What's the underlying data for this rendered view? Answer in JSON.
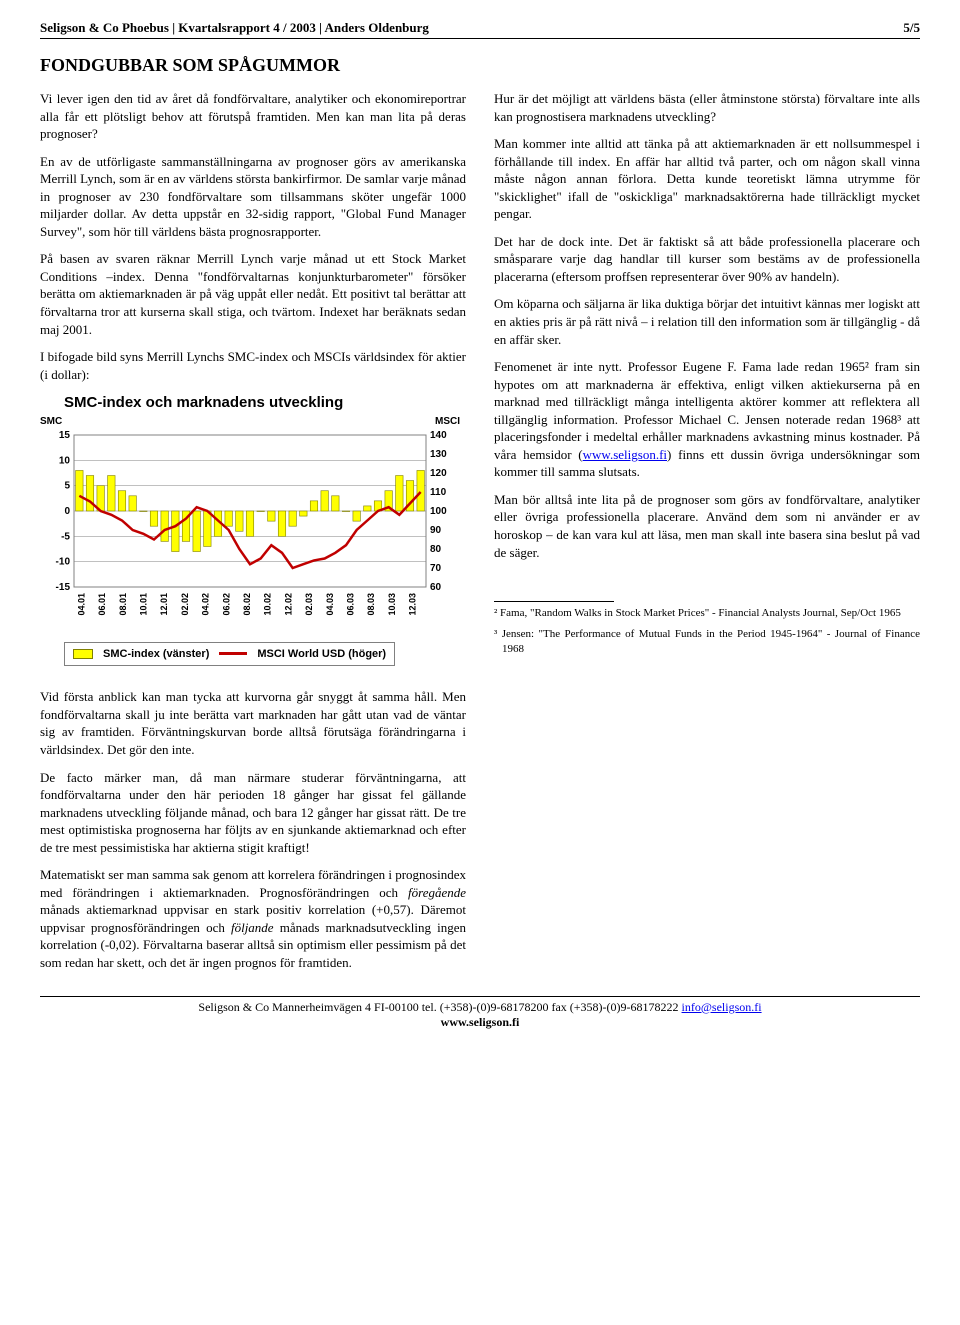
{
  "header": {
    "left": "Seligson & Co Phoebus | Kvartalsrapport 4 / 2003 | Anders Oldenburg",
    "right": "5/5"
  },
  "title": "FONDGUBBAR SOM SPÅGUMMOR",
  "left_paras": [
    "Vi lever igen den tid av året då fondförvaltare, analytiker och ekonomireportrar alla får ett plötsligt behov att förutspå framtiden. Men kan man lita på deras prognoser?",
    "En av de utförligaste sammanställningarna av prognoser görs av amerikanska Merrill Lynch, som är en av världens största bankirfirmor. De samlar varje månad in prognoser av 230 fondförvaltare som tillsammans sköter ungefär 1000 miljarder dollar. Av detta uppstår en 32-sidig rapport, \"Global Fund Manager Survey\", som hör till världens bästa prognosrapporter.",
    "På basen av svaren räknar Merrill Lynch varje månad ut ett Stock Market Conditions –index. Denna \"fondförvaltarnas konjunkturbarometer\" försöker berätta om aktiemarknaden är på väg uppåt eller nedåt. Ett positivt tal berättar att förvaltarna tror att kurserna skall stiga, och tvärtom. Indexet har beräknats sedan maj 2001.",
    "I bifogade bild syns Merrill Lynchs SMC-index och MSCIs världsindex för aktier (i dollar):"
  ],
  "right_paras": [
    "Hur är det möjligt att världens bästa (eller åtminstone största) förvaltare inte alls kan prognostisera marknadens utveckling?",
    "Man kommer inte alltid att tänka på att aktiemarknaden är ett nollsummespel i förhållande till index. En affär har alltid två parter, och om någon skall vinna måste någon annan förlora. Detta kunde teoretiskt lämna utrymme för \"skicklighet\" ifall de \"oskickliga\" marknadsaktörerna hade tillräckligt mycket pengar.",
    "Det har de dock inte. Det är faktiskt så att både professionella placerare och småsparare varje dag handlar till kurser som bestäms av de professionella placerarna (eftersom proffsen representerar över 90% av handeln).",
    "Om köparna och säljarna är lika duktiga börjar det intuitivt kännas mer logiskt att en akties pris är på rätt nivå – i relation till den information som är tillgänglig - då en affär sker."
  ],
  "right_para_with_link_pre": "Fenomenet är inte nytt. Professor Eugene F. Fama lade redan 1965² fram sin hypotes om att marknaderna är effektiva, enligt vilken aktiekurserna på en marknad med tillräckligt många intelligenta aktörer kommer att reflektera all tillgänglig information. Professor Michael C. Jensen noterade redan 1968³ att placeringsfonder i medeltal erhåller marknadens avkastning minus kostnader. På våra hemsidor (",
  "right_para_link_text": "www.seligson.fi",
  "right_para_with_link_post": ") finns ett dussin övriga undersökningar som kommer till samma slutsats.",
  "right_last_para": "Man bör alltså inte lita på de prognoser som görs av fondförvaltare, analytiker eller övriga professionella placerare. Använd dem som ni använder er av horoskop – de kan vara kul att läsa, men man skall inte basera sina beslut på vad de säger.",
  "chart": {
    "title": "SMC-index och marknadens utveckling",
    "left_axis_label": "SMC",
    "right_axis_label": "MSCI",
    "left_ticks": [
      "15",
      "10",
      "5",
      "0",
      "-5",
      "-10",
      "-15"
    ],
    "right_ticks": [
      "140",
      "130",
      "120",
      "110",
      "100",
      "90",
      "80",
      "70",
      "60"
    ],
    "categories": [
      "04.01",
      "06.01",
      "08.01",
      "10.01",
      "12.01",
      "02.02",
      "04.02",
      "06.02",
      "08.02",
      "10.02",
      "12.02",
      "02.03",
      "04.03",
      "06.03",
      "08.03",
      "10.03",
      "12.03"
    ],
    "legend_left": "SMC-index (vänster)",
    "legend_right": "MSCI World USD (höger)",
    "bar_color": "#ffff00",
    "bar_border": "#808000",
    "line_color": "#c00000",
    "grid_color": "#808080",
    "plot_bg": "#ffffff",
    "left_range": [
      -15,
      15
    ],
    "right_range": [
      60,
      140
    ],
    "smc_values": [
      8,
      7,
      5,
      7,
      4,
      3,
      0,
      -3,
      -6,
      -8,
      -6,
      -8,
      -7,
      -5,
      -3,
      -4,
      -5,
      0,
      -2,
      -5,
      -3,
      -1,
      2,
      4,
      3,
      0,
      -2,
      1,
      2,
      4,
      7,
      6,
      8
    ],
    "msci_values": [
      108,
      105,
      100,
      98,
      95,
      90,
      88,
      85,
      90,
      92,
      96,
      102,
      100,
      95,
      90,
      80,
      72,
      75,
      82,
      78,
      70,
      72,
      74,
      75,
      78,
      82,
      90,
      95,
      100,
      102,
      98,
      104,
      110
    ]
  },
  "below_paras": [
    "Vid första anblick kan man tycka att kurvorna går snyggt åt samma håll. Men fondförvaltarna skall ju inte berätta vart marknaden har gått utan vad de väntar sig av framtiden. Förväntningskurvan borde alltså förutsäga förändringarna i världsindex. Det gör den inte.",
    "De facto märker man, då man närmare studerar förväntningarna, att fondförvaltarna under den här perioden 18 gånger har gissat fel gällande marknadens utveckling följande månad, och bara 12 gånger har gissat rätt. De tre mest optimistiska prognoserna har följts av en sjunkande aktiemarknad och efter de tre mest pessimistiska har aktierna stigit kraftigt!"
  ],
  "below_last_html": "Matematiskt ser man samma sak genom att korrelera förändringen i prognosindex med förändringen i aktiemarknaden. Prognos­förändringen och <em>föregående</em> månads aktiemarknad uppvisar en stark positiv korrelation (+0,57). Däremot uppvisar prognosförändringen och <em>följande</em> månads marknadsutveckling ingen korrelation (-0,02). Förvaltarna baserar alltså sin optimism eller pessimism på det som redan har skett, och det är ingen prognos för framtiden.",
  "footnotes": [
    "² Fama, \"Random Walks in Stock Market Prices\"\n   - Financial Analysts Journal, Sep/Oct 1965",
    "³ Jensen: \"The Performance of Mutual Funds in the Period 1945-1964\" - Journal of Finance 1968"
  ],
  "footer": {
    "line1_pre": "Seligson & Co  Mannerheimvägen 4 FI-00100 tel. (+358)-(0)9-68178200 fax (+358)-(0)9-68178222 ",
    "line1_link": "info@seligson.fi",
    "line2": "www.seligson.fi"
  }
}
